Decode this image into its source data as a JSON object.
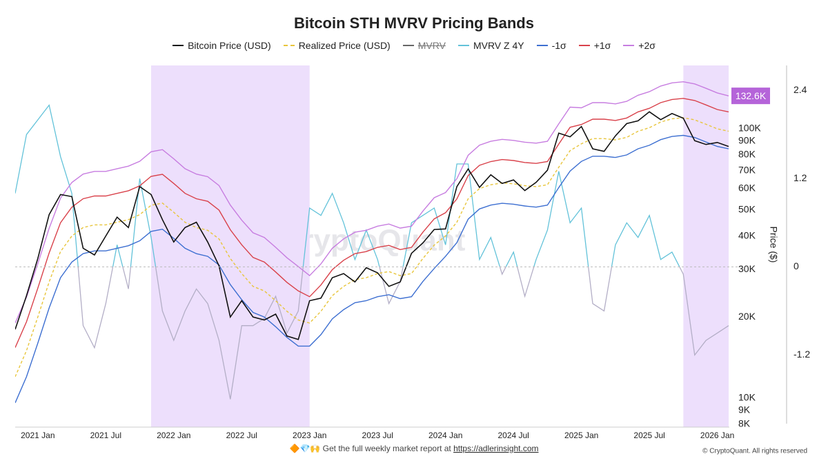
{
  "chart_data": {
    "type": "line",
    "title": "Bitcoin STH MVRV Pricing Bands",
    "y_label": "Price ($)",
    "watermark": "CryptoQuant",
    "x": [
      "2020-11",
      "2020-12",
      "2021-01",
      "2021-02",
      "2021-03",
      "2021-04",
      "2021-05",
      "2021-06",
      "2021-07",
      "2021-08",
      "2021-09",
      "2021-10",
      "2021-11",
      "2021-12",
      "2022-01",
      "2022-02",
      "2022-03",
      "2022-04",
      "2022-05",
      "2022-06",
      "2022-07",
      "2022-08",
      "2022-09",
      "2022-10",
      "2022-11",
      "2022-12",
      "2023-01",
      "2023-02",
      "2023-03",
      "2023-04",
      "2023-05",
      "2023-06",
      "2023-07",
      "2023-08",
      "2023-09",
      "2023-10",
      "2023-11",
      "2023-12",
      "2024-01",
      "2024-02",
      "2024-03",
      "2024-04",
      "2024-05",
      "2024-06",
      "2024-07",
      "2024-08",
      "2024-09",
      "2024-10",
      "2024-11",
      "2024-12",
      "2025-01",
      "2025-02",
      "2025-03",
      "2025-04",
      "2025-05",
      "2025-06",
      "2025-07",
      "2025-08",
      "2025-09",
      "2025-10",
      "2025-11",
      "2025-12",
      "2026-01",
      "2026-02"
    ],
    "xlim": [
      "2020-11",
      "2026-02"
    ],
    "xticks": [
      {
        "value": "2021-01",
        "label": "2021 Jan"
      },
      {
        "value": "2021-07",
        "label": "2021 Jul"
      },
      {
        "value": "2022-01",
        "label": "2022 Jan"
      },
      {
        "value": "2022-07",
        "label": "2022 Jul"
      },
      {
        "value": "2023-01",
        "label": "2023 Jan"
      },
      {
        "value": "2023-07",
        "label": "2023 Jul"
      },
      {
        "value": "2024-01",
        "label": "2024 Jan"
      },
      {
        "value": "2024-07",
        "label": "2024 Jul"
      },
      {
        "value": "2025-01",
        "label": "2025 Jan"
      },
      {
        "value": "2025-07",
        "label": "2025 Jul"
      },
      {
        "value": "2026-01",
        "label": "2026 Jan"
      }
    ],
    "ylog": true,
    "ylim": [
      7800,
      172000
    ],
    "yticks": [
      {
        "value": 8000,
        "label": "8K"
      },
      {
        "value": 9000,
        "label": "9K"
      },
      {
        "value": 10000,
        "label": "10K"
      },
      {
        "value": 20000,
        "label": "20K"
      },
      {
        "value": 30000,
        "label": "30K"
      },
      {
        "value": 40000,
        "label": "40K"
      },
      {
        "value": 50000,
        "label": "50K"
      },
      {
        "value": 60000,
        "label": "60K"
      },
      {
        "value": 70000,
        "label": "70K"
      },
      {
        "value": 80000,
        "label": "80K"
      },
      {
        "value": 90000,
        "label": "90K"
      },
      {
        "value": 100000,
        "label": "100K"
      }
    ],
    "y2lim": [
      -2.18,
      2.74
    ],
    "y2ticks": [
      -1.2,
      0,
      1.2,
      2.4
    ],
    "y2_zero_line": true,
    "shaded_ranges": [
      [
        "2021-11",
        "2023-01"
      ],
      [
        "2025-10",
        "2026-02"
      ]
    ],
    "shade_color": "#eddffc",
    "series": [
      {
        "name": "Bitcoin Price (USD)",
        "color": "#111111",
        "values": [
          18000,
          24000,
          33000,
          48000,
          57000,
          56000,
          36000,
          34000,
          40000,
          47000,
          43000,
          61000,
          57000,
          46000,
          38000,
          43000,
          45000,
          38000,
          31000,
          20000,
          23000,
          20000,
          19500,
          20500,
          17000,
          16500,
          23000,
          23500,
          28000,
          29000,
          27000,
          30500,
          29200,
          26000,
          27000,
          34500,
          37700,
          42300,
          42500,
          61000,
          71000,
          60600,
          67500,
          62700,
          64600,
          59000,
          63300,
          70200,
          96400,
          93400,
          102000,
          84300,
          82500,
          94200,
          104600,
          107100,
          115700,
          108200,
          114000,
          109500,
          90400,
          87500,
          89000,
          86000
        ]
      },
      {
        "name": "Realized Price (USD)",
        "color": "#e8c53a",
        "dash": true,
        "values": [
          12000,
          15000,
          20000,
          27000,
          35000,
          40000,
          43000,
          44000,
          44000,
          45000,
          46000,
          48000,
          52000,
          53000,
          49000,
          45000,
          43000,
          42000,
          39000,
          33000,
          29000,
          26000,
          25000,
          23000,
          21000,
          19500,
          19000,
          21000,
          24000,
          26000,
          27500,
          28000,
          29000,
          29500,
          28500,
          29000,
          33000,
          37000,
          40000,
          45000,
          55000,
          60000,
          62000,
          63000,
          62500,
          61500,
          61000,
          62000,
          72000,
          83000,
          88000,
          92000,
          92000,
          91000,
          93000,
          98000,
          101000,
          106000,
          109000,
          110000,
          108000,
          104000,
          100000,
          98000
        ]
      },
      {
        "name": "MVRV",
        "color": "#666666",
        "hidden": true
      },
      {
        "name": "MVRV Z 4Y",
        "color": "#62c2d9",
        "negative_color": "#b3aec6",
        "axis": "y2",
        "values": [
          1.0,
          1.8,
          2.0,
          2.2,
          1.5,
          1.0,
          -0.8,
          -1.1,
          -0.5,
          0.3,
          -0.3,
          1.2,
          0.4,
          -0.6,
          -1.0,
          -0.6,
          -0.3,
          -0.5,
          -1.0,
          -1.8,
          -0.8,
          -0.8,
          -0.7,
          -0.4,
          -0.9,
          -0.6,
          0.8,
          0.7,
          1.0,
          0.6,
          0.1,
          0.5,
          0.1,
          -0.5,
          -0.2,
          0.6,
          0.7,
          0.8,
          0.3,
          1.4,
          1.4,
          0.1,
          0.4,
          -0.1,
          0.2,
          -0.4,
          0.1,
          0.5,
          1.3,
          0.6,
          0.8,
          -0.5,
          -0.6,
          0.3,
          0.6,
          0.4,
          0.7,
          0.1,
          0.2,
          -0.1,
          -1.2,
          -1.0,
          -0.9,
          -0.8
        ]
      },
      {
        "name": "-1σ",
        "color": "#3d6fd1",
        "values": [
          9600,
          12000,
          16000,
          21600,
          28000,
          32000,
          34400,
          35200,
          35200,
          36000,
          36800,
          38400,
          41600,
          42400,
          39200,
          36000,
          34400,
          33600,
          31200,
          26400,
          23200,
          20800,
          20000,
          18400,
          16800,
          15600,
          15600,
          17200,
          19700,
          21300,
          22600,
          23000,
          23800,
          24200,
          23400,
          23800,
          27100,
          30300,
          33600,
          37800,
          46200,
          50400,
          52100,
          52900,
          52500,
          51700,
          51200,
          52100,
          60500,
          69700,
          75700,
          79100,
          79100,
          78300,
          80000,
          84300,
          86900,
          91200,
          93700,
          94600,
          92900,
          89400,
          86000,
          84300
        ]
      },
      {
        "name": "+1σ",
        "color": "#d9414a",
        "values": [
          15400,
          19200,
          25600,
          34600,
          44800,
          51200,
          55000,
          56300,
          56300,
          57600,
          58900,
          61400,
          66600,
          67800,
          62700,
          57600,
          55000,
          53800,
          49900,
          42200,
          37100,
          33300,
          32000,
          29400,
          26900,
          25000,
          23800,
          26300,
          30000,
          32500,
          34400,
          35000,
          36300,
          36900,
          35600,
          36300,
          41300,
          46300,
          48800,
          54900,
          67100,
          73200,
          75600,
          76900,
          76300,
          75000,
          74400,
          75600,
          87800,
          101300,
          103800,
          108600,
          108600,
          107400,
          109700,
          115600,
          119200,
          125100,
          128600,
          129800,
          127400,
          122700,
          118000,
          115600
        ]
      },
      {
        "name": "+2σ",
        "color": "#c77de0",
        "values": [
          19000,
          23700,
          31600,
          42700,
          55300,
          63200,
          67900,
          69500,
          69500,
          71100,
          72700,
          75800,
          82200,
          83700,
          77400,
          71100,
          67900,
          66400,
          61600,
          52100,
          45800,
          41100,
          39500,
          36300,
          33200,
          30800,
          28500,
          31500,
          36000,
          39000,
          41300,
          42000,
          43500,
          44300,
          42800,
          43500,
          49500,
          55500,
          58000,
          65300,
          79800,
          87000,
          89900,
          91400,
          90600,
          89200,
          88500,
          89900,
          104400,
          120400,
          119700,
          125100,
          125100,
          123800,
          126500,
          133300,
          137400,
          144200,
          148200,
          149600,
          146900,
          141400,
          136000,
          132600
        ]
      }
    ],
    "annotations": [
      {
        "text": "132.6K",
        "value": 132600,
        "color": "#b564d9"
      }
    ],
    "footer": {
      "emoji": "🔶💎🙌",
      "text": "Get the full weekly market report at",
      "link": "https://adlerinsight.com",
      "copyright": "© CryptoQuant. All rights reserved"
    }
  }
}
